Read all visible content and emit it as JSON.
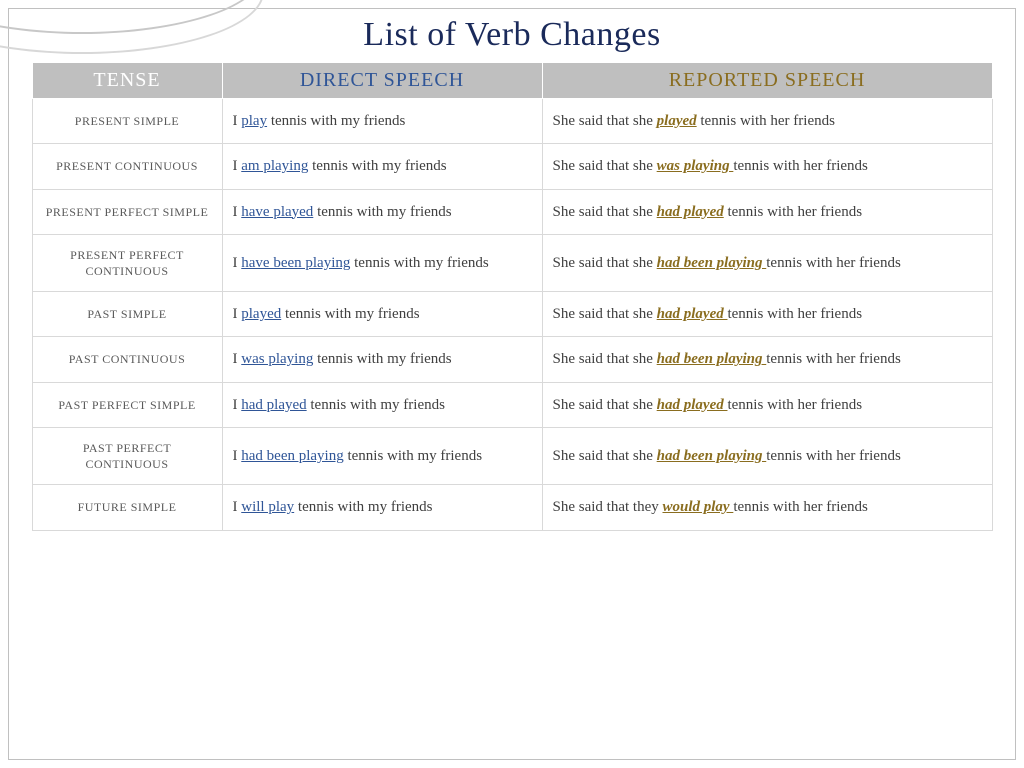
{
  "title": "List of Verb Changes",
  "columns": {
    "tense": "TENSE",
    "direct": "DIRECT SPEECH",
    "reported": "REPORTED SPEECH"
  },
  "style": {
    "title_color": "#1a2a5a",
    "title_fontsize": 34,
    "header_bg": "#bfbfbf",
    "tense_header_color": "#ffffff",
    "direct_color": "#2f5597",
    "reported_color": "#8a6d1f",
    "body_text_color": "#404040",
    "border_color": "#d9d9d9",
    "body_fontsize": 15,
    "tense_fontsize": 12
  },
  "rows": [
    {
      "tense": "PRESENT SIMPLE",
      "direct": {
        "pre": "I ",
        "hl": "play",
        "post": " tennis with my friends"
      },
      "reported": {
        "pre": "She said that she ",
        "hl": "played",
        "post": " tennis with her friends"
      }
    },
    {
      "tense": "PRESENT CONTINUOUS",
      "direct": {
        "pre": "I ",
        "hl": "am playing",
        "post": " tennis with my friends"
      },
      "reported": {
        "pre": "She said that she ",
        "hl": "was playing ",
        "post": "tennis with her friends"
      }
    },
    {
      "tense": "PRESENT PERFECT SIMPLE",
      "direct": {
        "pre": "I ",
        "hl": "have played",
        "post": " tennis with my friends"
      },
      "reported": {
        "pre": "She said that she ",
        "hl": "had played",
        "post": " tennis with her friends"
      }
    },
    {
      "tense": "PRESENT PERFECT CONTINUOUS",
      "direct": {
        "pre": "I ",
        "hl": "have been playing",
        "post": " tennis with my friends"
      },
      "reported": {
        "pre": "She said that she ",
        "hl": "had been playing ",
        "post": "tennis with her friends"
      }
    },
    {
      "tense": "PAST SIMPLE",
      "direct": {
        "pre": "I ",
        "hl": "played",
        "post": " tennis with my friends"
      },
      "reported": {
        "pre": "She said that she ",
        "hl": "had played ",
        "post": "tennis with her friends"
      }
    },
    {
      "tense": "PAST CONTINUOUS",
      "direct": {
        "pre": "I ",
        "hl": "was playing",
        "post": " tennis with my friends"
      },
      "reported": {
        "pre": "She said that she ",
        "hl": "had been playing ",
        "post": "tennis with her friends"
      }
    },
    {
      "tense": "PAST PERFECT SIMPLE",
      "direct": {
        "pre": "I ",
        "hl": "had played",
        "post": " tennis with my friends"
      },
      "reported": {
        "pre": "She said that she ",
        "hl": "had played ",
        "post": "tennis with her friends"
      }
    },
    {
      "tense": "PAST PERFECT CONTINUOUS",
      "direct": {
        "pre": "I ",
        "hl": "had been playing",
        "post": " tennis with my friends"
      },
      "reported": {
        "pre": "She said that she ",
        "hl": "had been playing ",
        "post": " tennis with her friends"
      }
    },
    {
      "tense": "FUTURE SIMPLE",
      "direct": {
        "pre": "I ",
        "hl": "will play",
        "post": " tennis with my friends"
      },
      "reported": {
        "pre": "She said that they ",
        "hl": "would play ",
        "post": "tennis with her friends"
      }
    }
  ]
}
